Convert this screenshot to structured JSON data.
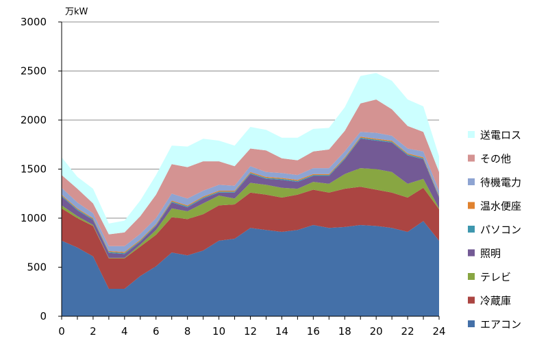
{
  "chart_data": {
    "type": "area",
    "stacked": true,
    "unit_label": "万kW",
    "x": [
      0,
      1,
      2,
      3,
      4,
      5,
      6,
      7,
      8,
      9,
      10,
      11,
      12,
      13,
      14,
      15,
      16,
      17,
      18,
      19,
      20,
      21,
      22,
      23,
      24
    ],
    "x_ticks": [
      0,
      2,
      4,
      6,
      8,
      10,
      12,
      14,
      16,
      18,
      20,
      22,
      24
    ],
    "y_ticks": [
      0,
      500,
      1000,
      1500,
      2000,
      2500,
      3000
    ],
    "ylim": [
      0,
      3000
    ],
    "xlim": [
      0,
      24
    ],
    "grid": "horizontal",
    "legend_position": "right",
    "series": [
      {
        "name": "エアコン",
        "color": "#4470A8",
        "values": [
          770,
          700,
          610,
          280,
          280,
          410,
          510,
          650,
          620,
          670,
          770,
          790,
          900,
          880,
          860,
          880,
          930,
          900,
          910,
          930,
          920,
          900,
          860,
          970,
          770
        ]
      },
      {
        "name": "冷蔵庫",
        "color": "#AB4542",
        "values": [
          330,
          300,
          310,
          310,
          310,
          300,
          320,
          360,
          370,
          370,
          360,
          350,
          360,
          360,
          350,
          360,
          360,
          360,
          390,
          390,
          370,
          360,
          350,
          340,
          320
        ]
      },
      {
        "name": "テレビ",
        "color": "#88A642",
        "values": [
          30,
          20,
          10,
          5,
          5,
          20,
          50,
          90,
          80,
          110,
          100,
          60,
          100,
          100,
          100,
          60,
          80,
          90,
          150,
          190,
          210,
          210,
          140,
          90,
          10
        ]
      },
      {
        "name": "照明",
        "color": "#735A95",
        "values": [
          90,
          60,
          50,
          50,
          40,
          30,
          40,
          60,
          40,
          50,
          30,
          60,
          90,
          60,
          80,
          70,
          60,
          80,
          150,
          300,
          290,
          300,
          290,
          200,
          110
        ]
      },
      {
        "name": "パソコン",
        "color": "#3E97AE",
        "values": [
          10,
          10,
          10,
          10,
          10,
          10,
          10,
          10,
          10,
          10,
          10,
          10,
          10,
          10,
          10,
          10,
          10,
          10,
          10,
          10,
          10,
          10,
          10,
          10,
          10
        ]
      },
      {
        "name": "温水便座",
        "color": "#E0822F",
        "values": [
          10,
          10,
          10,
          10,
          10,
          10,
          10,
          10,
          10,
          10,
          10,
          10,
          10,
          10,
          10,
          10,
          10,
          10,
          10,
          10,
          10,
          10,
          10,
          10,
          10
        ]
      },
      {
        "name": "待機電力",
        "color": "#8EA4D2",
        "values": [
          70,
          60,
          50,
          50,
          60,
          60,
          60,
          70,
          70,
          60,
          60,
          50,
          60,
          50,
          50,
          50,
          60,
          60,
          60,
          50,
          60,
          50,
          50,
          60,
          50
        ]
      },
      {
        "name": "その他",
        "color": "#D49392",
        "values": [
          130,
          140,
          100,
          120,
          140,
          180,
          240,
          300,
          320,
          300,
          240,
          200,
          180,
          220,
          150,
          150,
          170,
          190,
          210,
          290,
          340,
          270,
          230,
          200,
          190
        ]
      },
      {
        "name": "送電ロス",
        "color": "#CCFFFF",
        "values": [
          180,
          120,
          150,
          110,
          120,
          160,
          200,
          190,
          210,
          230,
          210,
          210,
          220,
          210,
          210,
          230,
          230,
          220,
          240,
          280,
          270,
          290,
          270,
          260,
          160
        ]
      }
    ]
  }
}
